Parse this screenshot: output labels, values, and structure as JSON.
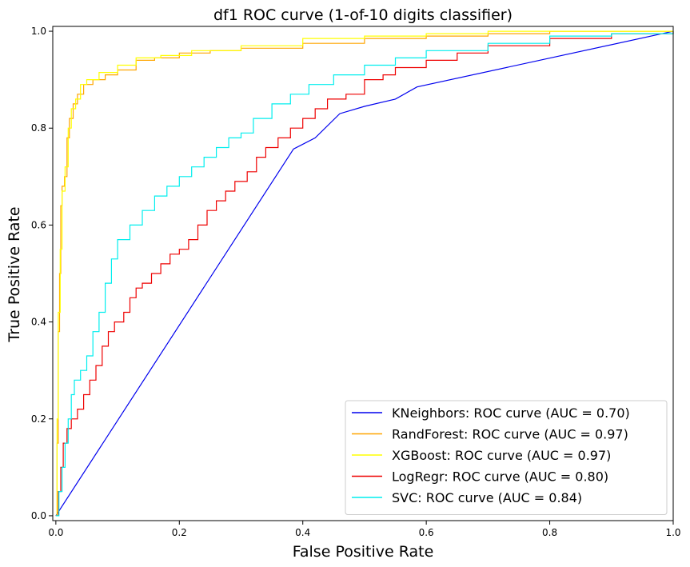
{
  "chart_data": {
    "type": "line",
    "title": "df1 ROC curve (1-of-10 digits classifier)",
    "xlabel": "False Positive Rate",
    "ylabel": "True Positive Rate",
    "xlim": [
      -0.005,
      1.0
    ],
    "ylim": [
      -0.01,
      1.01
    ],
    "xticks": [
      0.0,
      0.2,
      0.4,
      0.6,
      0.8,
      1.0
    ],
    "xtick_labels": [
      "0.0",
      "0.2",
      "0.4",
      "0.6",
      "0.8",
      "1.0"
    ],
    "yticks": [
      0.0,
      0.2,
      0.4,
      0.6,
      0.8,
      1.0
    ],
    "ytick_labels": [
      "0.0",
      "0.2",
      "0.4",
      "0.6",
      "0.8",
      "1.0"
    ],
    "grid": false,
    "legend_position": "lower-right",
    "series": [
      {
        "name": "KNeighbors: ROC curve (AUC = 0.70)",
        "color": "#0000ee",
        "points": [
          [
            0.0,
            0.0
          ],
          [
            0.385,
            0.757
          ],
          [
            0.42,
            0.78
          ],
          [
            0.46,
            0.83
          ],
          [
            0.5,
            0.845
          ],
          [
            0.55,
            0.86
          ],
          [
            0.585,
            0.885
          ],
          [
            1.0,
            1.0
          ]
        ]
      },
      {
        "name": "RandForest: ROC curve (AUC = 0.97)",
        "color": "#ffa500",
        "points": [
          [
            0.0,
            0.0
          ],
          [
            0.002,
            0.15
          ],
          [
            0.004,
            0.38
          ],
          [
            0.006,
            0.5
          ],
          [
            0.008,
            0.64
          ],
          [
            0.01,
            0.68
          ],
          [
            0.014,
            0.7
          ],
          [
            0.018,
            0.78
          ],
          [
            0.022,
            0.82
          ],
          [
            0.028,
            0.85
          ],
          [
            0.035,
            0.87
          ],
          [
            0.045,
            0.89
          ],
          [
            0.06,
            0.9
          ],
          [
            0.08,
            0.91
          ],
          [
            0.1,
            0.92
          ],
          [
            0.13,
            0.94
          ],
          [
            0.16,
            0.945
          ],
          [
            0.2,
            0.955
          ],
          [
            0.25,
            0.96
          ],
          [
            0.3,
            0.965
          ],
          [
            0.4,
            0.975
          ],
          [
            0.5,
            0.985
          ],
          [
            0.6,
            0.99
          ],
          [
            0.7,
            0.995
          ],
          [
            0.8,
            1.0
          ],
          [
            1.0,
            1.0
          ]
        ]
      },
      {
        "name": "XGBoost: ROC curve (AUC = 0.97)",
        "color": "#ffff00",
        "points": [
          [
            0.0,
            0.0
          ],
          [
            0.002,
            0.2
          ],
          [
            0.004,
            0.42
          ],
          [
            0.007,
            0.55
          ],
          [
            0.01,
            0.67
          ],
          [
            0.015,
            0.72
          ],
          [
            0.02,
            0.8
          ],
          [
            0.025,
            0.84
          ],
          [
            0.032,
            0.86
          ],
          [
            0.04,
            0.89
          ],
          [
            0.05,
            0.9
          ],
          [
            0.07,
            0.915
          ],
          [
            0.1,
            0.93
          ],
          [
            0.13,
            0.945
          ],
          [
            0.17,
            0.95
          ],
          [
            0.22,
            0.96
          ],
          [
            0.3,
            0.97
          ],
          [
            0.4,
            0.985
          ],
          [
            0.5,
            0.99
          ],
          [
            0.6,
            0.995
          ],
          [
            0.7,
            1.0
          ],
          [
            1.0,
            1.0
          ]
        ]
      },
      {
        "name": "LogRegr: ROC curve (AUC = 0.80)",
        "color": "#ee0000",
        "points": [
          [
            0.0,
            0.0
          ],
          [
            0.004,
            0.05
          ],
          [
            0.008,
            0.1
          ],
          [
            0.012,
            0.15
          ],
          [
            0.018,
            0.18
          ],
          [
            0.025,
            0.2
          ],
          [
            0.035,
            0.22
          ],
          [
            0.045,
            0.25
          ],
          [
            0.055,
            0.28
          ],
          [
            0.065,
            0.31
          ],
          [
            0.075,
            0.35
          ],
          [
            0.085,
            0.38
          ],
          [
            0.095,
            0.4
          ],
          [
            0.11,
            0.42
          ],
          [
            0.12,
            0.45
          ],
          [
            0.13,
            0.47
          ],
          [
            0.14,
            0.48
          ],
          [
            0.155,
            0.5
          ],
          [
            0.17,
            0.52
          ],
          [
            0.185,
            0.54
          ],
          [
            0.2,
            0.55
          ],
          [
            0.215,
            0.57
          ],
          [
            0.23,
            0.6
          ],
          [
            0.245,
            0.63
          ],
          [
            0.26,
            0.65
          ],
          [
            0.275,
            0.67
          ],
          [
            0.29,
            0.69
          ],
          [
            0.31,
            0.71
          ],
          [
            0.325,
            0.74
          ],
          [
            0.34,
            0.76
          ],
          [
            0.36,
            0.78
          ],
          [
            0.38,
            0.8
          ],
          [
            0.4,
            0.82
          ],
          [
            0.42,
            0.84
          ],
          [
            0.44,
            0.86
          ],
          [
            0.47,
            0.87
          ],
          [
            0.5,
            0.9
          ],
          [
            0.53,
            0.91
          ],
          [
            0.55,
            0.925
          ],
          [
            0.6,
            0.94
          ],
          [
            0.65,
            0.955
          ],
          [
            0.7,
            0.97
          ],
          [
            0.8,
            0.985
          ],
          [
            0.9,
            0.995
          ],
          [
            1.0,
            1.0
          ]
        ]
      },
      {
        "name": "SVC: ROC curve (AUC = 0.84)",
        "color": "#00eeee",
        "points": [
          [
            0.0,
            0.0
          ],
          [
            0.005,
            0.05
          ],
          [
            0.01,
            0.1
          ],
          [
            0.015,
            0.15
          ],
          [
            0.02,
            0.2
          ],
          [
            0.025,
            0.25
          ],
          [
            0.03,
            0.28
          ],
          [
            0.04,
            0.3
          ],
          [
            0.05,
            0.33
          ],
          [
            0.06,
            0.38
          ],
          [
            0.07,
            0.42
          ],
          [
            0.08,
            0.48
          ],
          [
            0.09,
            0.53
          ],
          [
            0.1,
            0.57
          ],
          [
            0.12,
            0.6
          ],
          [
            0.14,
            0.63
          ],
          [
            0.16,
            0.66
          ],
          [
            0.18,
            0.68
          ],
          [
            0.2,
            0.7
          ],
          [
            0.22,
            0.72
          ],
          [
            0.24,
            0.74
          ],
          [
            0.26,
            0.76
          ],
          [
            0.28,
            0.78
          ],
          [
            0.3,
            0.79
          ],
          [
            0.32,
            0.82
          ],
          [
            0.35,
            0.85
          ],
          [
            0.38,
            0.87
          ],
          [
            0.41,
            0.89
          ],
          [
            0.45,
            0.91
          ],
          [
            0.5,
            0.93
          ],
          [
            0.55,
            0.945
          ],
          [
            0.6,
            0.96
          ],
          [
            0.7,
            0.975
          ],
          [
            0.8,
            0.99
          ],
          [
            0.9,
            0.995
          ],
          [
            1.0,
            1.0
          ]
        ]
      }
    ]
  }
}
